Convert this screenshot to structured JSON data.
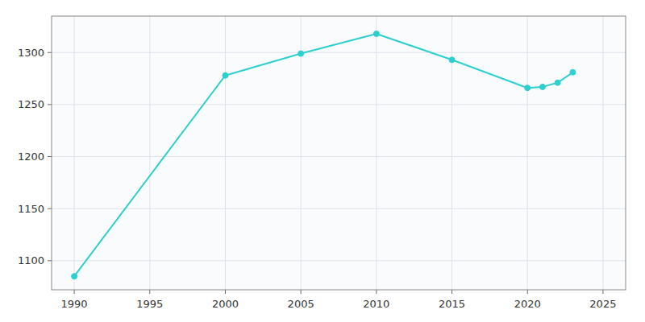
{
  "chart_data": {
    "type": "line",
    "x": [
      1990,
      2000,
      2005,
      2010,
      2015,
      2020,
      2021,
      2022,
      2023
    ],
    "values": [
      1085,
      1278,
      1299,
      1318,
      1293,
      1266,
      1267,
      1271,
      1281
    ],
    "color": "#2ecfcf",
    "marker": "circle",
    "xlim": [
      1988.5,
      2026.5
    ],
    "ylim": [
      1072,
      1335
    ],
    "xticks": [
      1990,
      1995,
      2000,
      2005,
      2010,
      2015,
      2020,
      2025
    ],
    "yticks": [
      1100,
      1150,
      1200,
      1250,
      1300
    ],
    "grid": true
  }
}
